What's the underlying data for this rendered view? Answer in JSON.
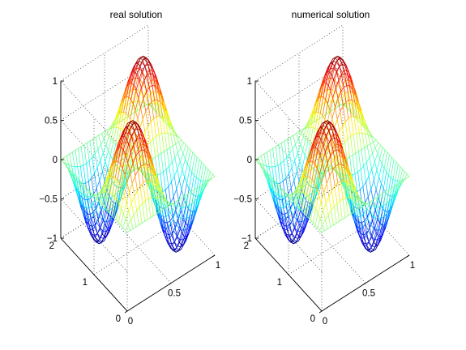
{
  "chart_data": [
    {
      "type": "surface",
      "title": "real solution",
      "xlabel": "",
      "ylabel": "",
      "zlabel": "",
      "xlim": [
        0,
        1
      ],
      "ylim": [
        0,
        2
      ],
      "zlim": [
        -1,
        1
      ],
      "x_ticks": [
        "0",
        "0.5",
        "1"
      ],
      "y_ticks": [
        "0",
        "1",
        "2"
      ],
      "z_ticks": [
        "1",
        "0.5",
        "0",
        "−0.5",
        "−1"
      ],
      "x_tick_values": [
        0,
        0.5,
        1
      ],
      "y_tick_values": [
        0,
        1,
        2
      ],
      "z_tick_values": [
        1,
        0.5,
        0,
        -0.5,
        -1
      ],
      "function": "sin(2*pi*x)*sin(pi*y)",
      "grid_size": [
        31,
        31
      ],
      "grid": true,
      "colormap": "jet"
    },
    {
      "type": "surface",
      "title": "numerical solution",
      "xlabel": "",
      "ylabel": "",
      "zlabel": "",
      "xlim": [
        0,
        1
      ],
      "ylim": [
        0,
        2
      ],
      "zlim": [
        -1,
        1
      ],
      "x_ticks": [
        "0",
        "0.5",
        "1"
      ],
      "y_ticks": [
        "0",
        "1",
        "2"
      ],
      "z_ticks": [
        "1",
        "0.5",
        "0",
        "−0.5",
        "−1"
      ],
      "x_tick_values": [
        0,
        0.5,
        1
      ],
      "y_tick_values": [
        0,
        1,
        2
      ],
      "z_tick_values": [
        1,
        0.5,
        0,
        -0.5,
        -1
      ],
      "function": "sin(2*pi*x)*sin(pi*y)",
      "grid_size": [
        31,
        31
      ],
      "grid": true,
      "colormap": "jet"
    }
  ]
}
